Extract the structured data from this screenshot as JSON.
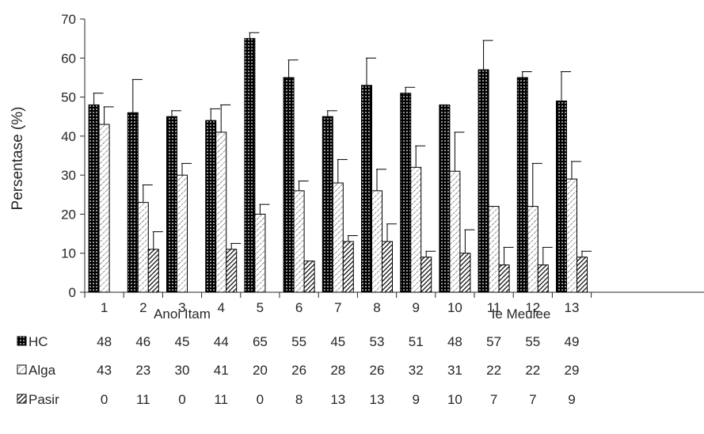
{
  "chart_data": {
    "type": "bar",
    "title": "",
    "xlabel": "",
    "ylabel": "Persentase (%)",
    "ylim": [
      0,
      70
    ],
    "yticks": [
      "0",
      "10",
      "20",
      "30",
      "40",
      "50",
      "60",
      "70"
    ],
    "categories": [
      "1",
      "2",
      "3",
      "4",
      "5",
      "6",
      "7",
      "8",
      "9",
      "10",
      "11",
      "12",
      "13"
    ],
    "groups": [
      {
        "label": "Anoi Itam",
        "categories": [
          "1",
          "2",
          "3",
          "4",
          "5"
        ]
      },
      {
        "label": "Ie Meulee",
        "categories": [
          "6",
          "7",
          "8",
          "9",
          "10",
          "11",
          "12",
          "13"
        ]
      }
    ],
    "series": [
      {
        "name": "HC",
        "pattern": "dots",
        "values": [
          48,
          46,
          45,
          44,
          65,
          55,
          45,
          53,
          51,
          48,
          57,
          55,
          49
        ],
        "errors": [
          3,
          8.5,
          1.5,
          3,
          1.5,
          4.5,
          1.5,
          7,
          1.5,
          0,
          7.5,
          1.5,
          7.5
        ]
      },
      {
        "name": "Alga",
        "pattern": "light-hatch",
        "values": [
          43,
          23,
          30,
          41,
          20,
          26,
          28,
          26,
          32,
          31,
          22,
          22,
          29
        ],
        "errors": [
          4.5,
          4.5,
          3,
          7,
          2.5,
          2.5,
          6,
          5.5,
          5.5,
          10,
          0,
          11,
          4.5
        ]
      },
      {
        "name": "Pasir",
        "pattern": "dark-hatch",
        "values": [
          0,
          11,
          0,
          11,
          0,
          8,
          13,
          13,
          9,
          10,
          7,
          7,
          9
        ],
        "errors": [
          0,
          4.5,
          0,
          1.5,
          0,
          0,
          1.5,
          4.5,
          1.5,
          6,
          4.5,
          4.5,
          1.5
        ]
      }
    ],
    "data_table": true,
    "grid": false,
    "colors": {
      "axis": "#262626",
      "bar_outline": "#000000",
      "background": "#ffffff"
    }
  }
}
